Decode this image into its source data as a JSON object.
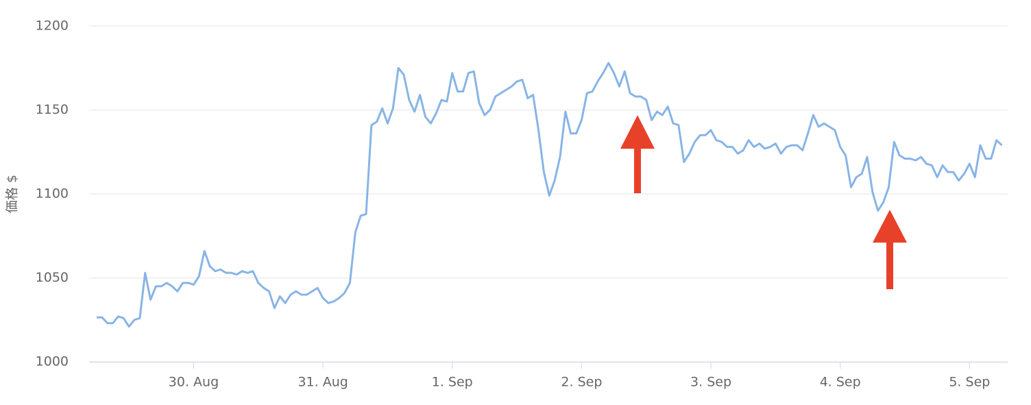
{
  "chart_data": {
    "type": "line",
    "y_label": "価格 $",
    "color": "#88b4e6",
    "ylim": [
      1000,
      1200
    ],
    "yticks": [
      1000,
      1050,
      1100,
      1150,
      1200
    ],
    "grid": true,
    "categories": [
      null,
      null,
      null,
      null,
      null,
      null,
      null,
      null,
      null,
      null,
      null,
      null,
      null,
      null,
      null,
      null,
      null,
      null,
      "30. Aug",
      null,
      null,
      null,
      null,
      null,
      null,
      null,
      null,
      null,
      null,
      null,
      null,
      null,
      null,
      null,
      null,
      null,
      null,
      null,
      null,
      null,
      null,
      null,
      "31. Aug",
      null,
      null,
      null,
      null,
      null,
      null,
      null,
      null,
      null,
      null,
      null,
      null,
      null,
      null,
      null,
      null,
      null,
      null,
      null,
      null,
      null,
      null,
      null,
      "1. Sep",
      null,
      null,
      null,
      null,
      null,
      null,
      null,
      null,
      null,
      null,
      null,
      null,
      null,
      null,
      null,
      null,
      null,
      null,
      null,
      null,
      null,
      null,
      null,
      "2. Sep",
      null,
      null,
      null,
      null,
      null,
      null,
      null,
      null,
      null,
      null,
      null,
      null,
      null,
      null,
      null,
      null,
      null,
      null,
      null,
      null,
      null,
      null,
      null,
      "3. Sep",
      null,
      null,
      null,
      null,
      null,
      null,
      null,
      null,
      null,
      null,
      null,
      null,
      null,
      null,
      null,
      null,
      null,
      null,
      null,
      null,
      null,
      null,
      null,
      "4. Sep",
      null,
      null,
      null,
      null,
      null,
      null,
      null,
      null,
      null,
      null,
      null,
      null,
      null,
      null,
      null,
      null,
      null,
      null,
      null,
      null,
      null,
      null,
      null,
      "5. Sep",
      null,
      null,
      null,
      null,
      null,
      null
    ],
    "values": [
      1026.5,
      1026.5,
      1023,
      1023,
      1027,
      1026,
      1021,
      1025,
      1026,
      1053,
      1037,
      1045,
      1045,
      1047,
      1045,
      1042,
      1047,
      1047,
      1046,
      1051,
      1066,
      1057,
      1054,
      1055,
      1053,
      1053,
      1052,
      1054,
      1053,
      1054,
      1047,
      1044,
      1042,
      1032,
      1039,
      1035,
      1040,
      1042,
      1040,
      1040,
      1042,
      1044,
      1038,
      1035,
      1036,
      1038,
      1041,
      1047,
      1077,
      1087,
      1088,
      1141,
      1143,
      1151,
      1142,
      1151,
      1175,
      1171,
      1156,
      1149,
      1159,
      1146,
      1142,
      1148,
      1156,
      1155,
      1172,
      1161,
      1161,
      1172,
      1173,
      1154,
      1147,
      1150,
      1158,
      1160,
      1162,
      1164,
      1167,
      1168,
      1157,
      1159,
      1138,
      1113,
      1099,
      1108,
      1122,
      1149,
      1136,
      1136,
      1144,
      1160,
      1161,
      1167,
      1172,
      1178,
      1172,
      1164,
      1173,
      1160,
      1158,
      1158,
      1156,
      1144,
      1149,
      1147,
      1152,
      1142,
      1141,
      1119,
      1124,
      1131,
      1135,
      1135,
      1138,
      1132,
      1131,
      1128,
      1128,
      1124,
      1126,
      1132,
      1128,
      1130,
      1127,
      1128,
      1130,
      1124,
      1128,
      1129,
      1129,
      1126,
      1136,
      1147,
      1140,
      1142,
      1140,
      1138,
      1128,
      1123,
      1104,
      1110,
      1112,
      1122,
      1101,
      1090,
      1095,
      1104,
      1131,
      1123,
      1121,
      1121,
      1120,
      1122,
      1118,
      1117,
      1110,
      1117,
      1113,
      1113,
      1108,
      1112,
      1118,
      1110,
      1129,
      1121,
      1121,
      1132,
      1129
    ]
  }
}
